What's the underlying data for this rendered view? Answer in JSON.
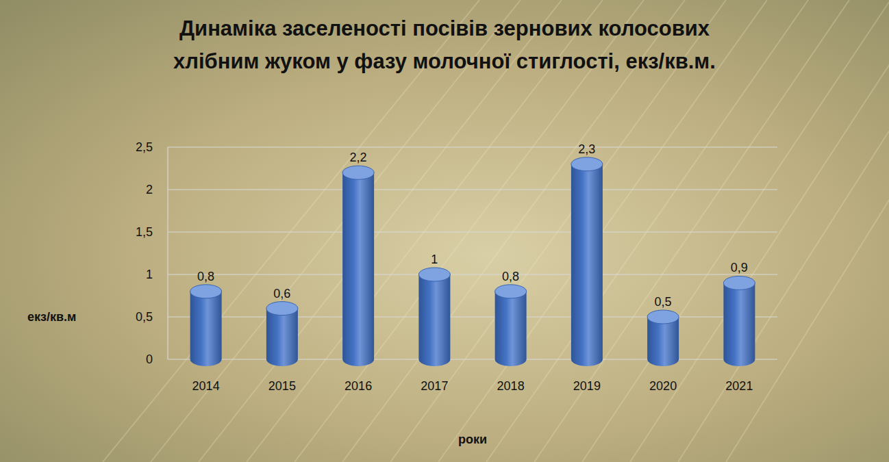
{
  "chart_data": {
    "type": "bar",
    "title": "Динаміка заселеності посівів зернових колосових хлібним жуком у фазу молочної стиглості, екз/кв.м.",
    "x_label": "роки",
    "y_label": "екз/кв.м",
    "categories": [
      "2014",
      "2015",
      "2016",
      "2017",
      "2018",
      "2019",
      "2020",
      "2021"
    ],
    "values": [
      0.8,
      0.6,
      2.2,
      1,
      0.8,
      2.3,
      0.5,
      0.9
    ],
    "value_labels": [
      "0,8",
      "0,6",
      "2,2",
      "1",
      "0,8",
      "2,3",
      "0,5",
      "0,9"
    ],
    "color": "#4472c4",
    "ylim": [
      0,
      2.5
    ],
    "yticks": [
      0,
      {
        "value": 0.5,
        "label": "0,5"
      },
      1,
      {
        "value": 1.5,
        "label": "1,5"
      },
      2,
      {
        "value": 2.5,
        "label": "2,5"
      }
    ],
    "grid": true,
    "data_labels": true
  }
}
